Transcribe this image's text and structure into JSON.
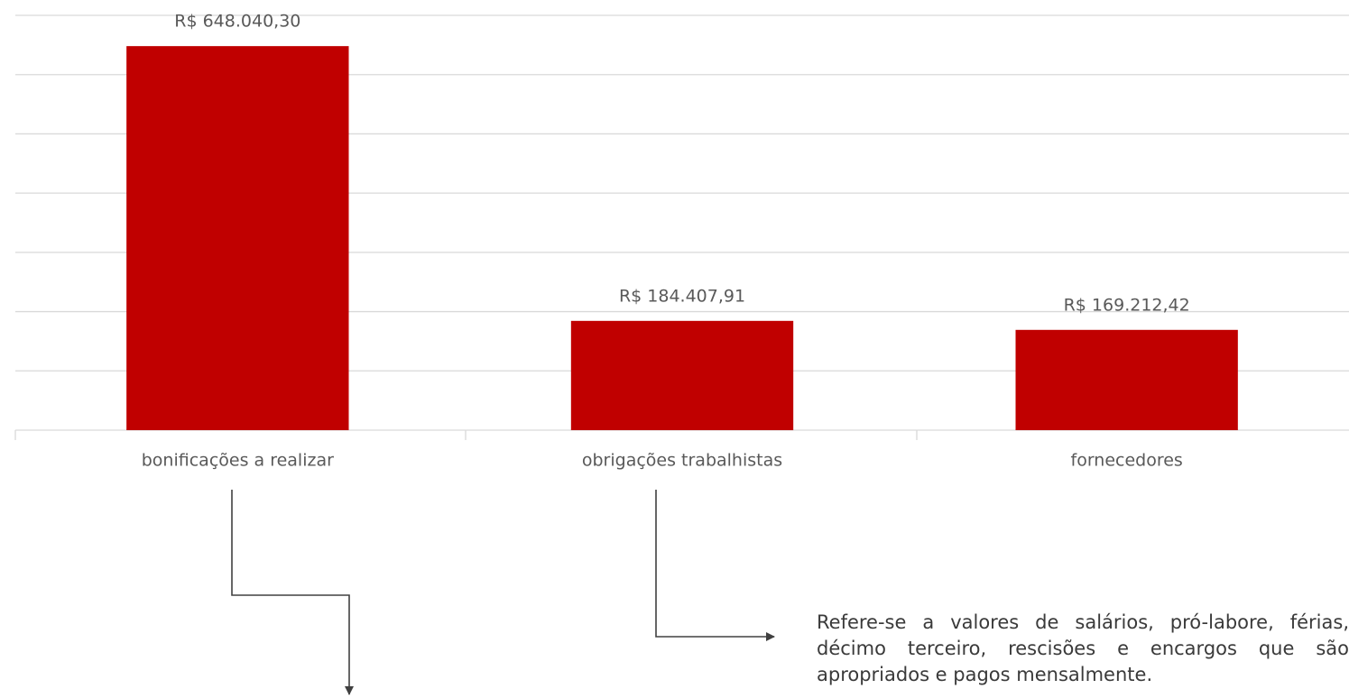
{
  "chart_data": {
    "type": "bar",
    "categories": [
      "bonificações a realizar",
      "obrigações trabalhistas",
      "fornecedores"
    ],
    "values": [
      648040.3,
      184407.91,
      169212.42
    ],
    "value_labels": [
      "R$ 648.040,30",
      "R$ 184.407,91",
      "R$ 169.212,42"
    ],
    "color": "#c00000",
    "ylim": [
      0,
      700000
    ],
    "yticks": [
      0,
      100000,
      200000,
      300000,
      400000,
      500000,
      600000,
      700000
    ],
    "grid": true,
    "annotation": "Refere-se a valores de salários, pró-labore, férias, décimo terceiro, rescisões e encargos que são apropriados e pagos mensalmente."
  }
}
